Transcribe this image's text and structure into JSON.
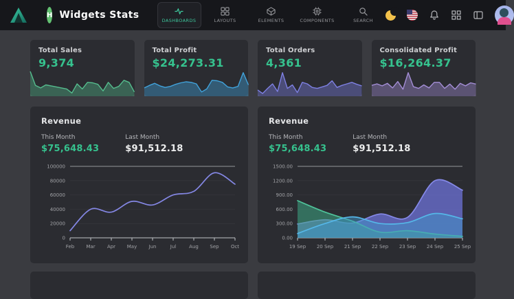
{
  "navbar": {
    "brand_letter": "H",
    "title": "Widgets Stats",
    "items": [
      {
        "label": "DASHBOARDS",
        "icon": "activity-icon",
        "active": true
      },
      {
        "label": "LAYOUTS",
        "icon": "layout-grid-icon",
        "active": false
      },
      {
        "label": "ELEMENTS",
        "icon": "box-icon",
        "active": false
      },
      {
        "label": "COMPONENTS",
        "icon": "cpu-icon",
        "active": false
      },
      {
        "label": "SEARCH",
        "icon": "search-icon",
        "active": false
      }
    ],
    "actions": [
      "moon-icon",
      "us-flag-icon",
      "bell-icon",
      "apps-grid-icon",
      "sidebar-toggle-icon",
      "user-avatar"
    ]
  },
  "colors": {
    "navbar_bg": "#16171b",
    "page_bg": "#3a3b40",
    "card_bg": "#2b2c31",
    "accent_green": "#36c28e",
    "nav_active_green": "#3ec79d"
  },
  "stat_cards": [
    {
      "label": "Total Sales",
      "value": "9,374"
    },
    {
      "label": "Total Profit",
      "value": "$24,273.31"
    },
    {
      "label": "Total Orders",
      "value": "4,361"
    },
    {
      "label": "Consolidated Profit",
      "value": "$16,264.37"
    }
  ],
  "revenue_left": {
    "title": "Revenue",
    "this_month_label": "This Month",
    "this_month_value": "$75,648.43",
    "last_month_label": "Last Month",
    "last_month_value": "$91,512.18"
  },
  "revenue_right": {
    "title": "Revenue",
    "this_month_label": "This Month",
    "this_month_value": "$75,648.43",
    "last_month_label": "Last Month",
    "last_month_value": "$91,512.18"
  },
  "chart_data": [
    {
      "id": "spark-total-sales",
      "type": "area",
      "color": "#55bd8e",
      "fill_opacity": 0.38,
      "values": [
        95,
        40,
        30,
        42,
        38,
        34,
        30,
        26,
        10,
        46,
        26,
        52,
        50,
        44,
        18,
        52,
        28,
        36,
        60,
        52,
        14
      ]
    },
    {
      "id": "spark-total-profit",
      "type": "area",
      "color": "#41a3dc",
      "fill_opacity": 0.4,
      "values": [
        30,
        40,
        48,
        38,
        32,
        36,
        44,
        50,
        54,
        52,
        46,
        14,
        26,
        60,
        58,
        52,
        34,
        30,
        36,
        90,
        42
      ]
    },
    {
      "id": "spark-total-orders",
      "type": "area",
      "color": "#7e80e3",
      "fill_opacity": 0.4,
      "values": [
        22,
        8,
        28,
        46,
        16,
        90,
        28,
        42,
        12,
        52,
        46,
        32,
        28,
        34,
        40,
        58,
        32,
        40,
        46,
        52,
        44,
        38
      ]
    },
    {
      "id": "spark-consolidated-profit",
      "type": "area",
      "color": "#a58fd8",
      "fill_opacity": 0.4,
      "values": [
        40,
        46,
        38,
        48,
        30,
        55,
        25,
        90,
        35,
        28,
        42,
        30,
        52,
        52,
        28,
        45,
        25,
        48,
        38,
        50,
        45
      ]
    },
    {
      "id": "revenue-monthly",
      "type": "line",
      "title": "Revenue",
      "categories": [
        "Feb",
        "Mar",
        "Apr",
        "May",
        "Jun",
        "Jul",
        "Aug",
        "Sep",
        "Oct"
      ],
      "series": [
        {
          "name": "This Month",
          "color": "#8487e4",
          "values": [
            10000,
            40000,
            36000,
            51000,
            46000,
            60000,
            65000,
            91000,
            75000
          ]
        }
      ],
      "ylim": [
        0,
        100000
      ],
      "ytick_labels": [
        "0",
        "20000",
        "40000",
        "60000",
        "80000",
        "100000"
      ],
      "grid": "top-line-only",
      "legend": "none"
    },
    {
      "id": "revenue-daily",
      "type": "area",
      "title": "Revenue",
      "categories": [
        "19 Sep",
        "20 Sep",
        "21 Sep",
        "22 Sep",
        "23 Sep",
        "24 Sep",
        "25 Sep"
      ],
      "series": [
        {
          "name": "series-purple",
          "color": "#8589e8",
          "fill": "#6d71d8",
          "fill_opacity": 0.75,
          "values": [
            290,
            380,
            310,
            500,
            430,
            1200,
            1000
          ]
        },
        {
          "name": "series-green",
          "color": "#4fc39a",
          "fill": "#3da884",
          "fill_opacity": 0.55,
          "values": [
            780,
            540,
            350,
            120,
            150,
            80,
            30
          ]
        },
        {
          "name": "series-blue",
          "color": "#55b7e8",
          "fill": "#3f95c9",
          "fill_opacity": 0.5,
          "values": [
            90,
            300,
            440,
            300,
            320,
            510,
            400
          ]
        }
      ],
      "ylim": [
        0,
        1500
      ],
      "ytick_labels": [
        "0.00",
        "300.00",
        "600.00",
        "900.00",
        "1200.00",
        "1500.00"
      ],
      "grid": "top-line-only",
      "legend": "none"
    }
  ]
}
